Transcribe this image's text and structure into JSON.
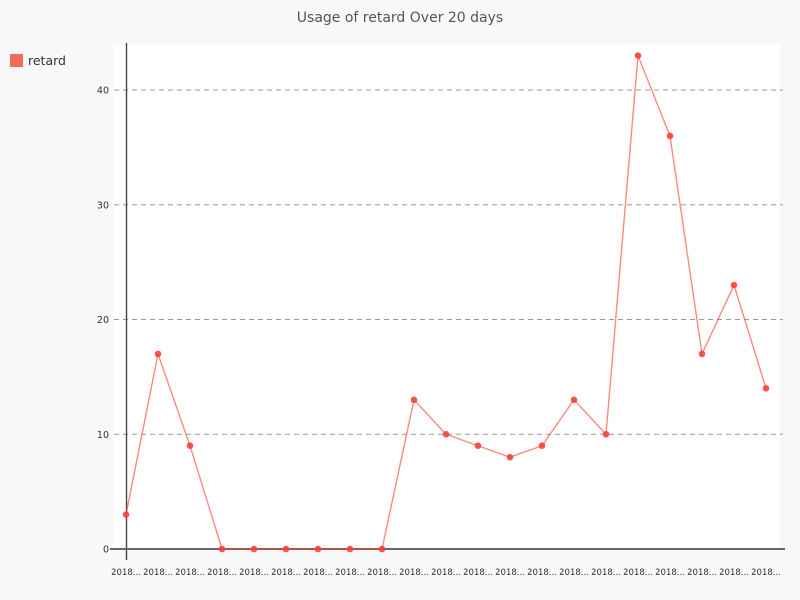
{
  "page": {
    "background_color": "#f8f8f8",
    "plot_background_color": "#ffffff"
  },
  "legend": {
    "position": "top-left"
  },
  "chart_data": {
    "type": "line",
    "title": "Usage of retard Over 20 days",
    "xlabel": "",
    "ylabel": "",
    "ylim": [
      0,
      44
    ],
    "yticks": [
      0,
      10,
      20,
      30,
      40
    ],
    "grid": "horizontal-dashed",
    "legend_position": "top-left",
    "x_labels": [
      "2018...",
      "2018...",
      "2018...",
      "2018...",
      "2018...",
      "2018...",
      "2018...",
      "2018...",
      "2018...",
      "2018...",
      "2018...",
      "2018...",
      "2018...",
      "2018...",
      "2018...",
      "2018...",
      "2018...",
      "2018...",
      "2018...",
      "2018...",
      "2018..."
    ],
    "series": [
      {
        "name": "retard",
        "color": "#f44336",
        "values": [
          3,
          17,
          9,
          0,
          0,
          0,
          0,
          0,
          0,
          13,
          10,
          9,
          8,
          9,
          13,
          10,
          43,
          36,
          17,
          23,
          14
        ]
      }
    ],
    "colors": {
      "series": "#f44336",
      "grid": "#9a9a9a",
      "axis": "#444444",
      "x_axis": "#666666",
      "tick_text": "#333333",
      "title_text": "#555555"
    }
  }
}
